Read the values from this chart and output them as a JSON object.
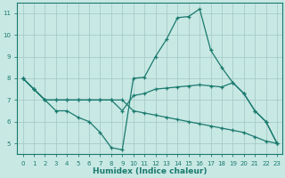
{
  "xlabel": "Humidex (Indice chaleur)",
  "background_color": "#c8e8e4",
  "grid_color": "#a8ccc8",
  "line_color": "#1a7a6e",
  "xlim": [
    -0.5,
    23.5
  ],
  "ylim": [
    4.5,
    11.5
  ],
  "yticks": [
    5,
    6,
    7,
    8,
    9,
    10,
    11
  ],
  "xticks": [
    0,
    1,
    2,
    3,
    4,
    5,
    6,
    7,
    8,
    9,
    10,
    11,
    12,
    13,
    14,
    15,
    16,
    17,
    18,
    19,
    20,
    21,
    22,
    23
  ],
  "lines": [
    {
      "x": [
        0,
        1,
        2,
        3,
        4,
        5,
        6,
        7,
        8,
        9,
        10,
        11,
        12,
        13,
        14,
        15,
        16,
        17,
        18,
        19,
        20,
        21,
        22,
        23
      ],
      "y": [
        8.0,
        7.5,
        7.0,
        6.5,
        6.5,
        6.2,
        6.0,
        5.5,
        4.8,
        4.7,
        8.0,
        8.05,
        9.0,
        9.8,
        10.8,
        10.85,
        11.2,
        9.3,
        8.5,
        7.8,
        7.3,
        6.5,
        6.0,
        5.0
      ]
    },
    {
      "x": [
        0,
        1,
        2,
        3,
        4,
        5,
        6,
        7,
        8,
        9,
        10,
        11,
        12,
        13,
        14,
        15,
        16,
        17,
        18,
        19,
        20,
        21,
        22,
        23
      ],
      "y": [
        8.0,
        7.5,
        7.0,
        7.0,
        7.0,
        7.0,
        7.0,
        7.0,
        7.0,
        6.5,
        7.2,
        7.3,
        7.5,
        7.55,
        7.6,
        7.65,
        7.7,
        7.65,
        7.6,
        7.8,
        7.3,
        6.5,
        6.0,
        5.0
      ]
    },
    {
      "x": [
        0,
        1,
        2,
        3,
        4,
        5,
        6,
        7,
        8,
        9,
        10,
        11,
        12,
        13,
        14,
        15,
        16,
        17,
        18,
        19,
        20,
        21,
        22,
        23
      ],
      "y": [
        8.0,
        7.5,
        7.0,
        7.0,
        7.0,
        7.0,
        7.0,
        7.0,
        7.0,
        7.0,
        6.5,
        6.4,
        6.3,
        6.2,
        6.1,
        6.0,
        5.9,
        5.8,
        5.7,
        5.6,
        5.5,
        5.3,
        5.1,
        5.0
      ]
    }
  ]
}
